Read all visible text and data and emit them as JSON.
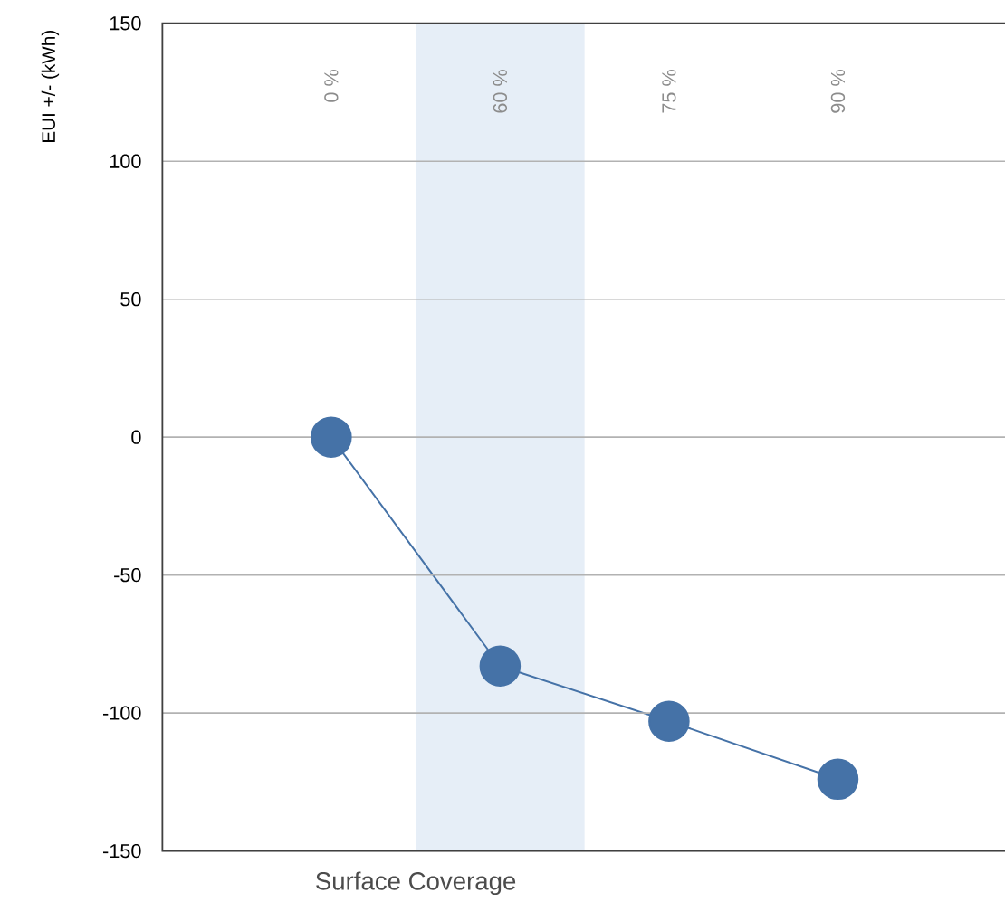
{
  "chart_data": {
    "type": "line",
    "xlabel": "Surface Coverage",
    "ylabel": "EUI +/- (kWh)",
    "categories": [
      "0 %",
      "60 %",
      "75 %",
      "90 %"
    ],
    "values": [
      0,
      -83,
      -103,
      -124
    ],
    "color": "#4572a7",
    "ylim": [
      -150,
      150
    ],
    "yticks": [
      -150,
      -100,
      -50,
      0,
      50,
      100,
      150
    ],
    "grid": "y",
    "marker": "circle",
    "line_style": "solid",
    "bands": [
      {
        "axis": "x",
        "from": "60 %",
        "to": "60 %",
        "color": "#e6eef7"
      }
    ]
  }
}
